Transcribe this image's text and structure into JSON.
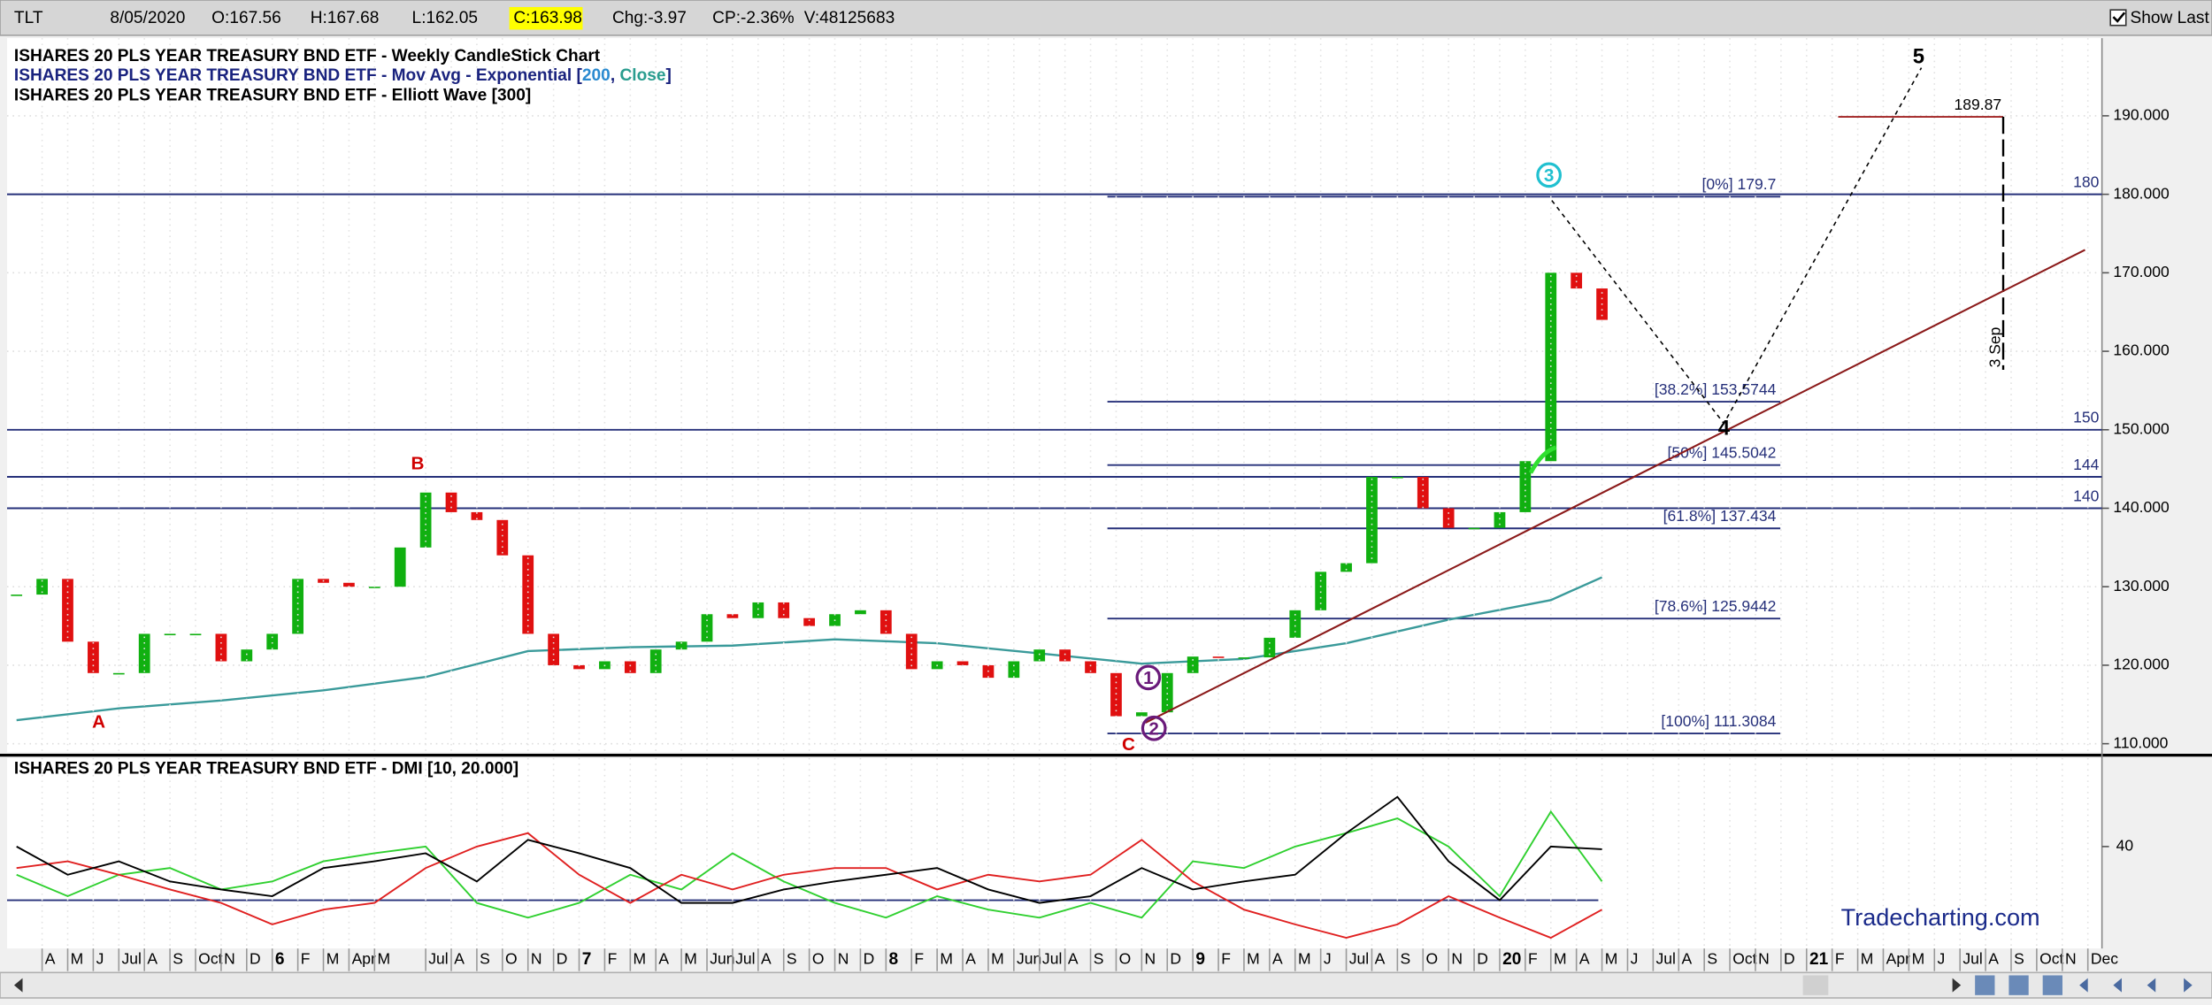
{
  "header": {
    "symbol": "TLT",
    "date": "8/05/2020",
    "open": "O:167.56",
    "high": "H:167.68",
    "low": "L:162.05",
    "close": "C:163.98",
    "change": "Chg:-3.97",
    "change_pct": "CP:-2.36%",
    "volume": "V:48125683",
    "show_last": "Show Last"
  },
  "watermark": "Tradecharting.com",
  "chart_data": [
    {
      "type": "candlestick",
      "legend": {
        "line1": "ISHARES 20 PLS YEAR TREASURY BND ETF - Weekly CandleStick Chart",
        "line2": {
          "prefix": "ISHARES 20 PLS YEAR TREASURY BND ETF - Mov Avg - Exponential [",
          "period": "200",
          "sep": ", ",
          "field": "Close",
          "suffix": "]"
        },
        "line3": "ISHARES 20 PLS YEAR TREASURY BND ETF - Elliott Wave [300]"
      },
      "xlim": [
        "2015-02",
        "2021-12"
      ],
      "ylim": [
        108.9,
        199.9
      ],
      "yticks": [
        {
          "value": 110,
          "label": "110.000"
        },
        {
          "value": 120,
          "label": "120.000"
        },
        {
          "value": 130,
          "label": "130.000"
        },
        {
          "value": 140,
          "label": "140.000"
        },
        {
          "value": 150,
          "label": "150.000"
        },
        {
          "value": 160,
          "label": "160.000"
        },
        {
          "value": 170,
          "label": "170.000"
        },
        {
          "value": 180,
          "label": "180.000"
        },
        {
          "value": 190,
          "label": "190.000"
        }
      ],
      "grid": true,
      "up_color": "#10b010",
      "down_color": "#e01010",
      "x": [
        "2015-03",
        "2015-04",
        "2015-05",
        "2015-06",
        "2015-07",
        "2015-08",
        "2015-09",
        "2015-10",
        "2015-11",
        "2015-12",
        "2016-01",
        "2016-02",
        "2016-03",
        "2016-04",
        "2016-05",
        "2016-06",
        "2016-07",
        "2016-08",
        "2016-09",
        "2016-10",
        "2016-11",
        "2016-12",
        "2017-01",
        "2017-02",
        "2017-03",
        "2017-04",
        "2017-05",
        "2017-06",
        "2017-07",
        "2017-08",
        "2017-09",
        "2017-10",
        "2017-11",
        "2017-12",
        "2018-01",
        "2018-02",
        "2018-03",
        "2018-04",
        "2018-05",
        "2018-06",
        "2018-07",
        "2018-08",
        "2018-09",
        "2018-10",
        "2018-11",
        "2018-12",
        "2019-01",
        "2019-02",
        "2019-03",
        "2019-04",
        "2019-05",
        "2019-06",
        "2019-07",
        "2019-08",
        "2019-09",
        "2019-10",
        "2019-11",
        "2019-12",
        "2020-01",
        "2020-02",
        "2020-03",
        "2020-04",
        "2020-05"
      ],
      "values": [
        129,
        131,
        123,
        119,
        119,
        124,
        124,
        124,
        120.5,
        122,
        124,
        131,
        130.5,
        130,
        130,
        135,
        142,
        139.5,
        138.5,
        134,
        124,
        120,
        119.5,
        120.5,
        119,
        122,
        123,
        126.5,
        126,
        128,
        126,
        125,
        126.5,
        127,
        124,
        119.5,
        120.5,
        120,
        118.4,
        120.5,
        122,
        120.5,
        119,
        113.5,
        114,
        119,
        121.1,
        121,
        121,
        123.5,
        127,
        131.9,
        133,
        144,
        144,
        140,
        137.5,
        137.5,
        139.5,
        146,
        170,
        168,
        164
      ],
      "ema": {
        "color": "#3a9a9a",
        "x": [
          "2015-03",
          "2015-07",
          "2015-11",
          "2016-03",
          "2016-07",
          "2016-11",
          "2017-03",
          "2017-07",
          "2017-11",
          "2018-03",
          "2018-07",
          "2018-11",
          "2019-03",
          "2019-07",
          "2019-11",
          "2020-03",
          "2020-05"
        ],
        "values": [
          113,
          114.5,
          115.5,
          116.8,
          118.5,
          121.8,
          122.3,
          122.5,
          123.3,
          122.8,
          121.5,
          120.2,
          120.8,
          122.8,
          125.8,
          128.3,
          131.2
        ]
      },
      "levels": [
        180,
        150,
        144,
        140
      ],
      "level_color": "#26307a",
      "fib_levels": [
        {
          "label": "[0%] 179.7",
          "value": 179.7
        },
        {
          "label": "[38.2%] 153.5744",
          "value": 153.5744
        },
        {
          "label": "[50%] 145.5042",
          "value": 145.5042
        },
        {
          "label": "[61.8%] 137.434",
          "value": 137.434
        },
        {
          "label": "[78.6%] 125.9442",
          "value": 125.9442
        },
        {
          "label": "[100%] 111.3084",
          "value": 111.3084
        }
      ],
      "target": {
        "value": 189.87,
        "date_label": "3 Sep"
      },
      "waves": [
        "A",
        "B",
        "C",
        "1",
        "2",
        "3",
        "4",
        "5"
      ]
    },
    {
      "type": "line",
      "title": "ISHARES 20 PLS YEAR TREASURY BND ETF - DMI [10, 20.000]",
      "xlim": [
        "2015-02",
        "2021-12"
      ],
      "ylim": [
        2,
        73
      ],
      "yticks": [
        40
      ],
      "threshold": 20,
      "x": [
        "2015-03",
        "2015-05",
        "2015-07",
        "2015-09",
        "2015-11",
        "2016-01",
        "2016-03",
        "2016-05",
        "2016-07",
        "2016-09",
        "2016-11",
        "2017-01",
        "2017-03",
        "2017-05",
        "2017-07",
        "2017-09",
        "2017-11",
        "2018-01",
        "2018-03",
        "2018-05",
        "2018-07",
        "2018-09",
        "2018-11",
        "2019-01",
        "2019-03",
        "2019-05",
        "2019-07",
        "2019-09",
        "2019-11",
        "2020-01",
        "2020-03",
        "2020-05"
      ],
      "series": [
        {
          "color": "#30d030",
          "values": [
            29.5,
            21.5,
            29.5,
            32,
            24,
            27,
            34.5,
            37.5,
            40,
            19,
            13.5,
            19,
            29.5,
            24,
            37.5,
            27,
            19,
            13.5,
            21.5,
            16.5,
            13.5,
            19,
            13.5,
            34.5,
            32,
            40,
            45,
            50.5,
            40,
            21.5,
            53,
            27
          ]
        },
        {
          "color": "#e02020",
          "values": [
            32,
            34.5,
            29.5,
            24,
            19,
            11,
            16.5,
            19,
            32,
            40,
            45,
            29.5,
            19,
            29.5,
            24,
            29.5,
            32,
            32,
            24,
            29.5,
            27,
            29.5,
            42.5,
            27,
            16.5,
            11,
            6,
            11,
            21.5,
            13.5,
            6,
            16.5
          ]
        },
        {
          "color": "#000000",
          "values": [
            40,
            29.5,
            34.5,
            27,
            24,
            21.5,
            32,
            34.5,
            37.5,
            27,
            42.5,
            37.5,
            32,
            19,
            19,
            24,
            27,
            29.5,
            32,
            24,
            19,
            21.5,
            32,
            24,
            27,
            29.5,
            45,
            58.5,
            34.5,
            20,
            40,
            39
          ]
        }
      ],
      "xticks": [
        {
          "value": "2015-04",
          "label": "A"
        },
        {
          "value": "2015-05",
          "label": "M"
        },
        {
          "value": "2015-06",
          "label": "J"
        },
        {
          "value": "2015-07",
          "label": "Jul"
        },
        {
          "value": "2015-08",
          "label": "A"
        },
        {
          "value": "2015-09",
          "label": "S"
        },
        {
          "value": "2015-10",
          "label": "Oct"
        },
        {
          "value": "2015-11",
          "label": "N"
        },
        {
          "value": "2015-12",
          "label": "D"
        },
        {
          "value": "2016-01",
          "label": "6"
        },
        {
          "value": "2016-02",
          "label": "F"
        },
        {
          "value": "2016-03",
          "label": "M"
        },
        {
          "value": "2016-04",
          "label": "Apr"
        },
        {
          "value": "2016-05",
          "label": "M"
        },
        {
          "value": "2016-07",
          "label": "Jul"
        },
        {
          "value": "2016-08",
          "label": "A"
        },
        {
          "value": "2016-09",
          "label": "S"
        },
        {
          "value": "2016-10",
          "label": "O"
        },
        {
          "value": "2016-11",
          "label": "N"
        },
        {
          "value": "2016-12",
          "label": "D"
        },
        {
          "value": "2017-01",
          "label": "7"
        },
        {
          "value": "2017-02",
          "label": "F"
        },
        {
          "value": "2017-03",
          "label": "M"
        },
        {
          "value": "2017-04",
          "label": "A"
        },
        {
          "value": "2017-05",
          "label": "M"
        },
        {
          "value": "2017-06",
          "label": "Jun"
        },
        {
          "value": "2017-07",
          "label": "Jul"
        },
        {
          "value": "2017-08",
          "label": "A"
        },
        {
          "value": "2017-09",
          "label": "S"
        },
        {
          "value": "2017-10",
          "label": "O"
        },
        {
          "value": "2017-11",
          "label": "N"
        },
        {
          "value": "2017-12",
          "label": "D"
        },
        {
          "value": "2018-01",
          "label": "8"
        },
        {
          "value": "2018-02",
          "label": "F"
        },
        {
          "value": "2018-03",
          "label": "M"
        },
        {
          "value": "2018-04",
          "label": "A"
        },
        {
          "value": "2018-05",
          "label": "M"
        },
        {
          "value": "2018-06",
          "label": "Jun"
        },
        {
          "value": "2018-07",
          "label": "Jul"
        },
        {
          "value": "2018-08",
          "label": "A"
        },
        {
          "value": "2018-09",
          "label": "S"
        },
        {
          "value": "2018-10",
          "label": "O"
        },
        {
          "value": "2018-11",
          "label": "N"
        },
        {
          "value": "2018-12",
          "label": "D"
        },
        {
          "value": "2019-01",
          "label": "9"
        },
        {
          "value": "2019-02",
          "label": "F"
        },
        {
          "value": "2019-03",
          "label": "M"
        },
        {
          "value": "2019-04",
          "label": "A"
        },
        {
          "value": "2019-05",
          "label": "M"
        },
        {
          "value": "2019-06",
          "label": "J"
        },
        {
          "value": "2019-07",
          "label": "Jul"
        },
        {
          "value": "2019-08",
          "label": "A"
        },
        {
          "value": "2019-09",
          "label": "S"
        },
        {
          "value": "2019-10",
          "label": "O"
        },
        {
          "value": "2019-11",
          "label": "N"
        },
        {
          "value": "2019-12",
          "label": "D"
        },
        {
          "value": "2020-01",
          "label": "20"
        },
        {
          "value": "2020-02",
          "label": "F"
        },
        {
          "value": "2020-03",
          "label": "M"
        },
        {
          "value": "2020-04",
          "label": "A"
        },
        {
          "value": "2020-05",
          "label": "M"
        },
        {
          "value": "2020-06",
          "label": "J"
        },
        {
          "value": "2020-07",
          "label": "Jul"
        },
        {
          "value": "2020-08",
          "label": "A"
        },
        {
          "value": "2020-09",
          "label": "S"
        },
        {
          "value": "2020-10",
          "label": "Oct"
        },
        {
          "value": "2020-11",
          "label": "N"
        },
        {
          "value": "2020-12",
          "label": "D"
        },
        {
          "value": "2021-01",
          "label": "21"
        },
        {
          "value": "2021-02",
          "label": "F"
        },
        {
          "value": "2021-03",
          "label": "M"
        },
        {
          "value": "2021-04",
          "label": "Apr"
        },
        {
          "value": "2021-05",
          "label": "M"
        },
        {
          "value": "2021-06",
          "label": "J"
        },
        {
          "value": "2021-07",
          "label": "Jul"
        },
        {
          "value": "2021-08",
          "label": "A"
        },
        {
          "value": "2021-09",
          "label": "S"
        },
        {
          "value": "2021-10",
          "label": "Oct"
        },
        {
          "value": "2021-11",
          "label": "N"
        },
        {
          "value": "2021-12",
          "label": "Dec"
        }
      ]
    }
  ]
}
